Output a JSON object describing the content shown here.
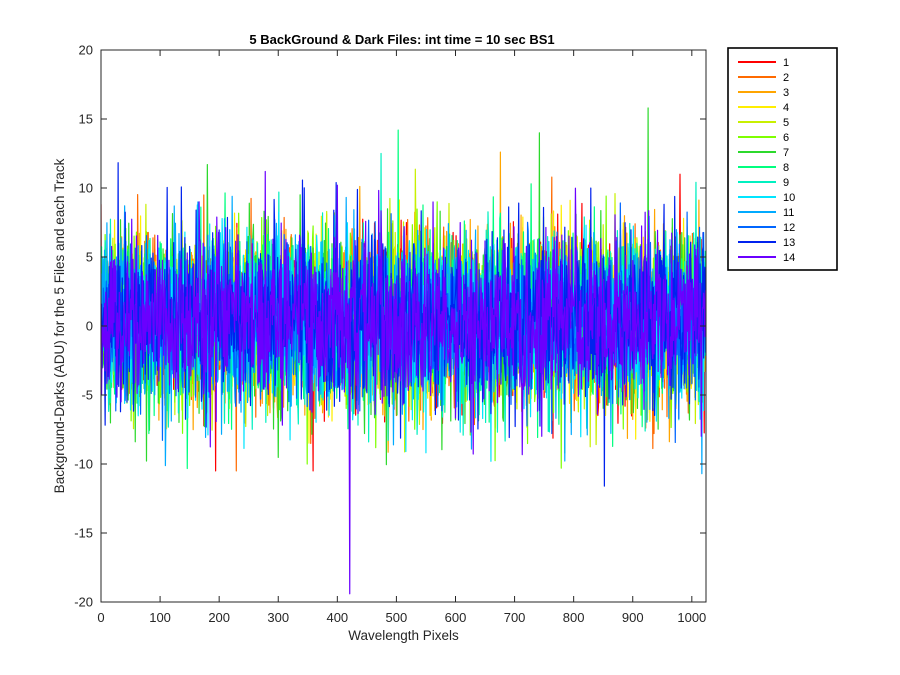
{
  "chart_data": {
    "type": "line",
    "title": "5 BackGround & Dark Files: int time = 10 sec   BS1",
    "xlabel": "Wavelength Pixels",
    "ylabel": "Background-Darks (ADU) for the 5 Files and each Track",
    "xlim": [
      0,
      1024
    ],
    "ylim": [
      -20,
      20
    ],
    "xticks": [
      0,
      100,
      200,
      300,
      400,
      500,
      600,
      700,
      800,
      900,
      1000
    ],
    "yticks": [
      -20,
      -15,
      -10,
      -5,
      0,
      5,
      10,
      15,
      20
    ],
    "grid": false,
    "legend_position": "outside-top-right",
    "noise": {
      "points_per_series": 1024,
      "mean": 0.5,
      "stddev": 3.0,
      "clip": [
        -10.5,
        14.3
      ]
    },
    "extremes": [
      {
        "series": "14",
        "x": 421,
        "y": -19.4
      },
      {
        "series": "7",
        "x": 926,
        "y": 15.8
      },
      {
        "series": "8",
        "x": 503,
        "y": 14.2
      },
      {
        "series": "7",
        "x": 742,
        "y": 14.0
      },
      {
        "series": "3",
        "x": 676,
        "y": 12.6
      },
      {
        "series": "9",
        "x": 474,
        "y": 12.5
      },
      {
        "series": "7",
        "x": 180,
        "y": 11.7
      },
      {
        "series": "14",
        "x": 278,
        "y": 11.2
      },
      {
        "series": "1",
        "x": 980,
        "y": 11.0
      },
      {
        "series": "13",
        "x": 852,
        "y": -11.6
      },
      {
        "series": "11",
        "x": 1017,
        "y": -10.7
      },
      {
        "series": "6",
        "x": 779,
        "y": -10.3
      },
      {
        "series": "6",
        "x": 349,
        "y": -10.0
      },
      {
        "series": "10",
        "x": 660,
        "y": -9.8
      }
    ],
    "series": [
      {
        "name": "1",
        "color": "#ff0000"
      },
      {
        "name": "2",
        "color": "#ff6a00"
      },
      {
        "name": "3",
        "color": "#ffa500"
      },
      {
        "name": "4",
        "color": "#ffee00"
      },
      {
        "name": "5",
        "color": "#c8f000"
      },
      {
        "name": "6",
        "color": "#7fff00"
      },
      {
        "name": "7",
        "color": "#2cd92c"
      },
      {
        "name": "8",
        "color": "#00ff7f"
      },
      {
        "name": "9",
        "color": "#00f0c0"
      },
      {
        "name": "10",
        "color": "#00e5ff"
      },
      {
        "name": "11",
        "color": "#00aaff"
      },
      {
        "name": "12",
        "color": "#0066ff"
      },
      {
        "name": "13",
        "color": "#0022ee"
      },
      {
        "name": "14",
        "color": "#6a00ff"
      }
    ]
  }
}
